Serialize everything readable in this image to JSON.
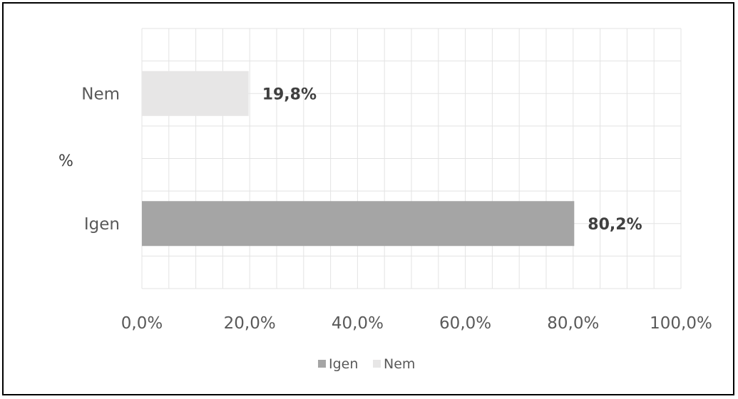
{
  "chart_data": {
    "type": "bar",
    "orientation": "horizontal",
    "categories": [
      "Igen",
      "Nem"
    ],
    "values": [
      80.2,
      19.8
    ],
    "data_labels": [
      "80,2%",
      "19,8%"
    ],
    "colors": [
      "#a5a5a5",
      "#e7e6e6"
    ],
    "title": "",
    "xlabel": "",
    "ylabel": "%",
    "xlim": [
      0,
      100
    ],
    "x_ticks": [
      0,
      20,
      40,
      60,
      80,
      100
    ],
    "x_tick_labels": [
      "0,0%",
      "20,0%",
      "40,0%",
      "60,0%",
      "80,0%",
      "100,0%"
    ],
    "grid": true,
    "legend": {
      "placement": "bottom",
      "entries": [
        "Igen",
        "Nem"
      ]
    }
  }
}
